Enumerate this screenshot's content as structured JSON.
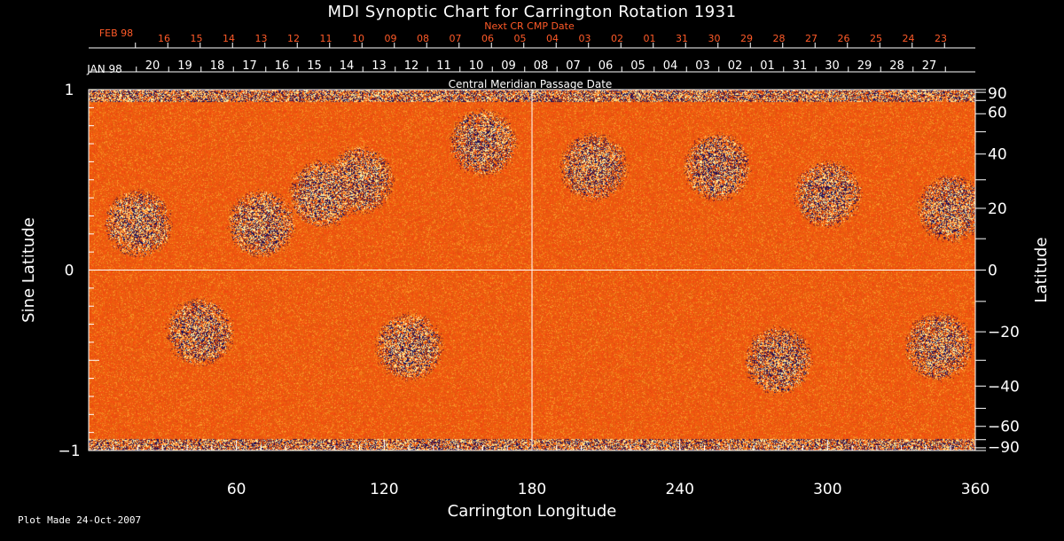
{
  "chart_data": {
    "type": "heatmap",
    "title": "MDI Synoptic Chart for Carrington Rotation 1931",
    "xlabel": "Carrington Longitude",
    "ylabel_left": "Sine Latitude",
    "ylabel_right": "Latitude",
    "xlim": [
      0,
      360
    ],
    "ylim": [
      -1,
      1
    ],
    "x_ticks": [
      "60",
      "120",
      "180",
      "240",
      "300",
      "360"
    ],
    "y_ticks_left": [
      "1",
      "0",
      "−1"
    ],
    "y_ticks_right": [
      "90",
      "60",
      "40",
      "20",
      "0",
      "−20",
      "−40",
      "−60",
      "−90"
    ],
    "top_axis_label": "Central Meridian Passage Date",
    "top_axis_month_start": "JAN 98",
    "top_axis_dates": [
      "20",
      "19",
      "18",
      "17",
      "16",
      "15",
      "14",
      "13",
      "12",
      "11",
      "10",
      "09",
      "08",
      "07",
      "06",
      "05",
      "04",
      "03",
      "02",
      "01",
      "31",
      "30",
      "29",
      "28",
      "27"
    ],
    "next_cr_label": "Next CR CMP Date",
    "next_cr_month_start": "FEB 98",
    "next_cr_dates": [
      "16",
      "15",
      "14",
      "13",
      "12",
      "11",
      "10",
      "09",
      "08",
      "07",
      "06",
      "05",
      "04",
      "03",
      "02",
      "01",
      "31",
      "30",
      "29",
      "28",
      "27",
      "26",
      "25",
      "24",
      "23"
    ],
    "colors": {
      "background": "#000000",
      "field_low": "#1a1060",
      "field_mid": "#e8501a",
      "field_high": "#fff3b0",
      "next_cr_text": "#ff5a28"
    },
    "active_regions": [
      {
        "lon": 20,
        "lat": 15
      },
      {
        "lon": 70,
        "lat": 15
      },
      {
        "lon": 95,
        "lat": 25
      },
      {
        "lon": 110,
        "lat": 30
      },
      {
        "lon": 160,
        "lat": 45
      },
      {
        "lon": 205,
        "lat": 35
      },
      {
        "lon": 255,
        "lat": 35
      },
      {
        "lon": 300,
        "lat": 25
      },
      {
        "lon": 350,
        "lat": 20
      },
      {
        "lon": 45,
        "lat": -20
      },
      {
        "lon": 130,
        "lat": -25
      },
      {
        "lon": 280,
        "lat": -30
      },
      {
        "lon": 345,
        "lat": -25
      }
    ]
  },
  "footer": {
    "plot_made": "Plot Made 24-Oct-2007"
  }
}
